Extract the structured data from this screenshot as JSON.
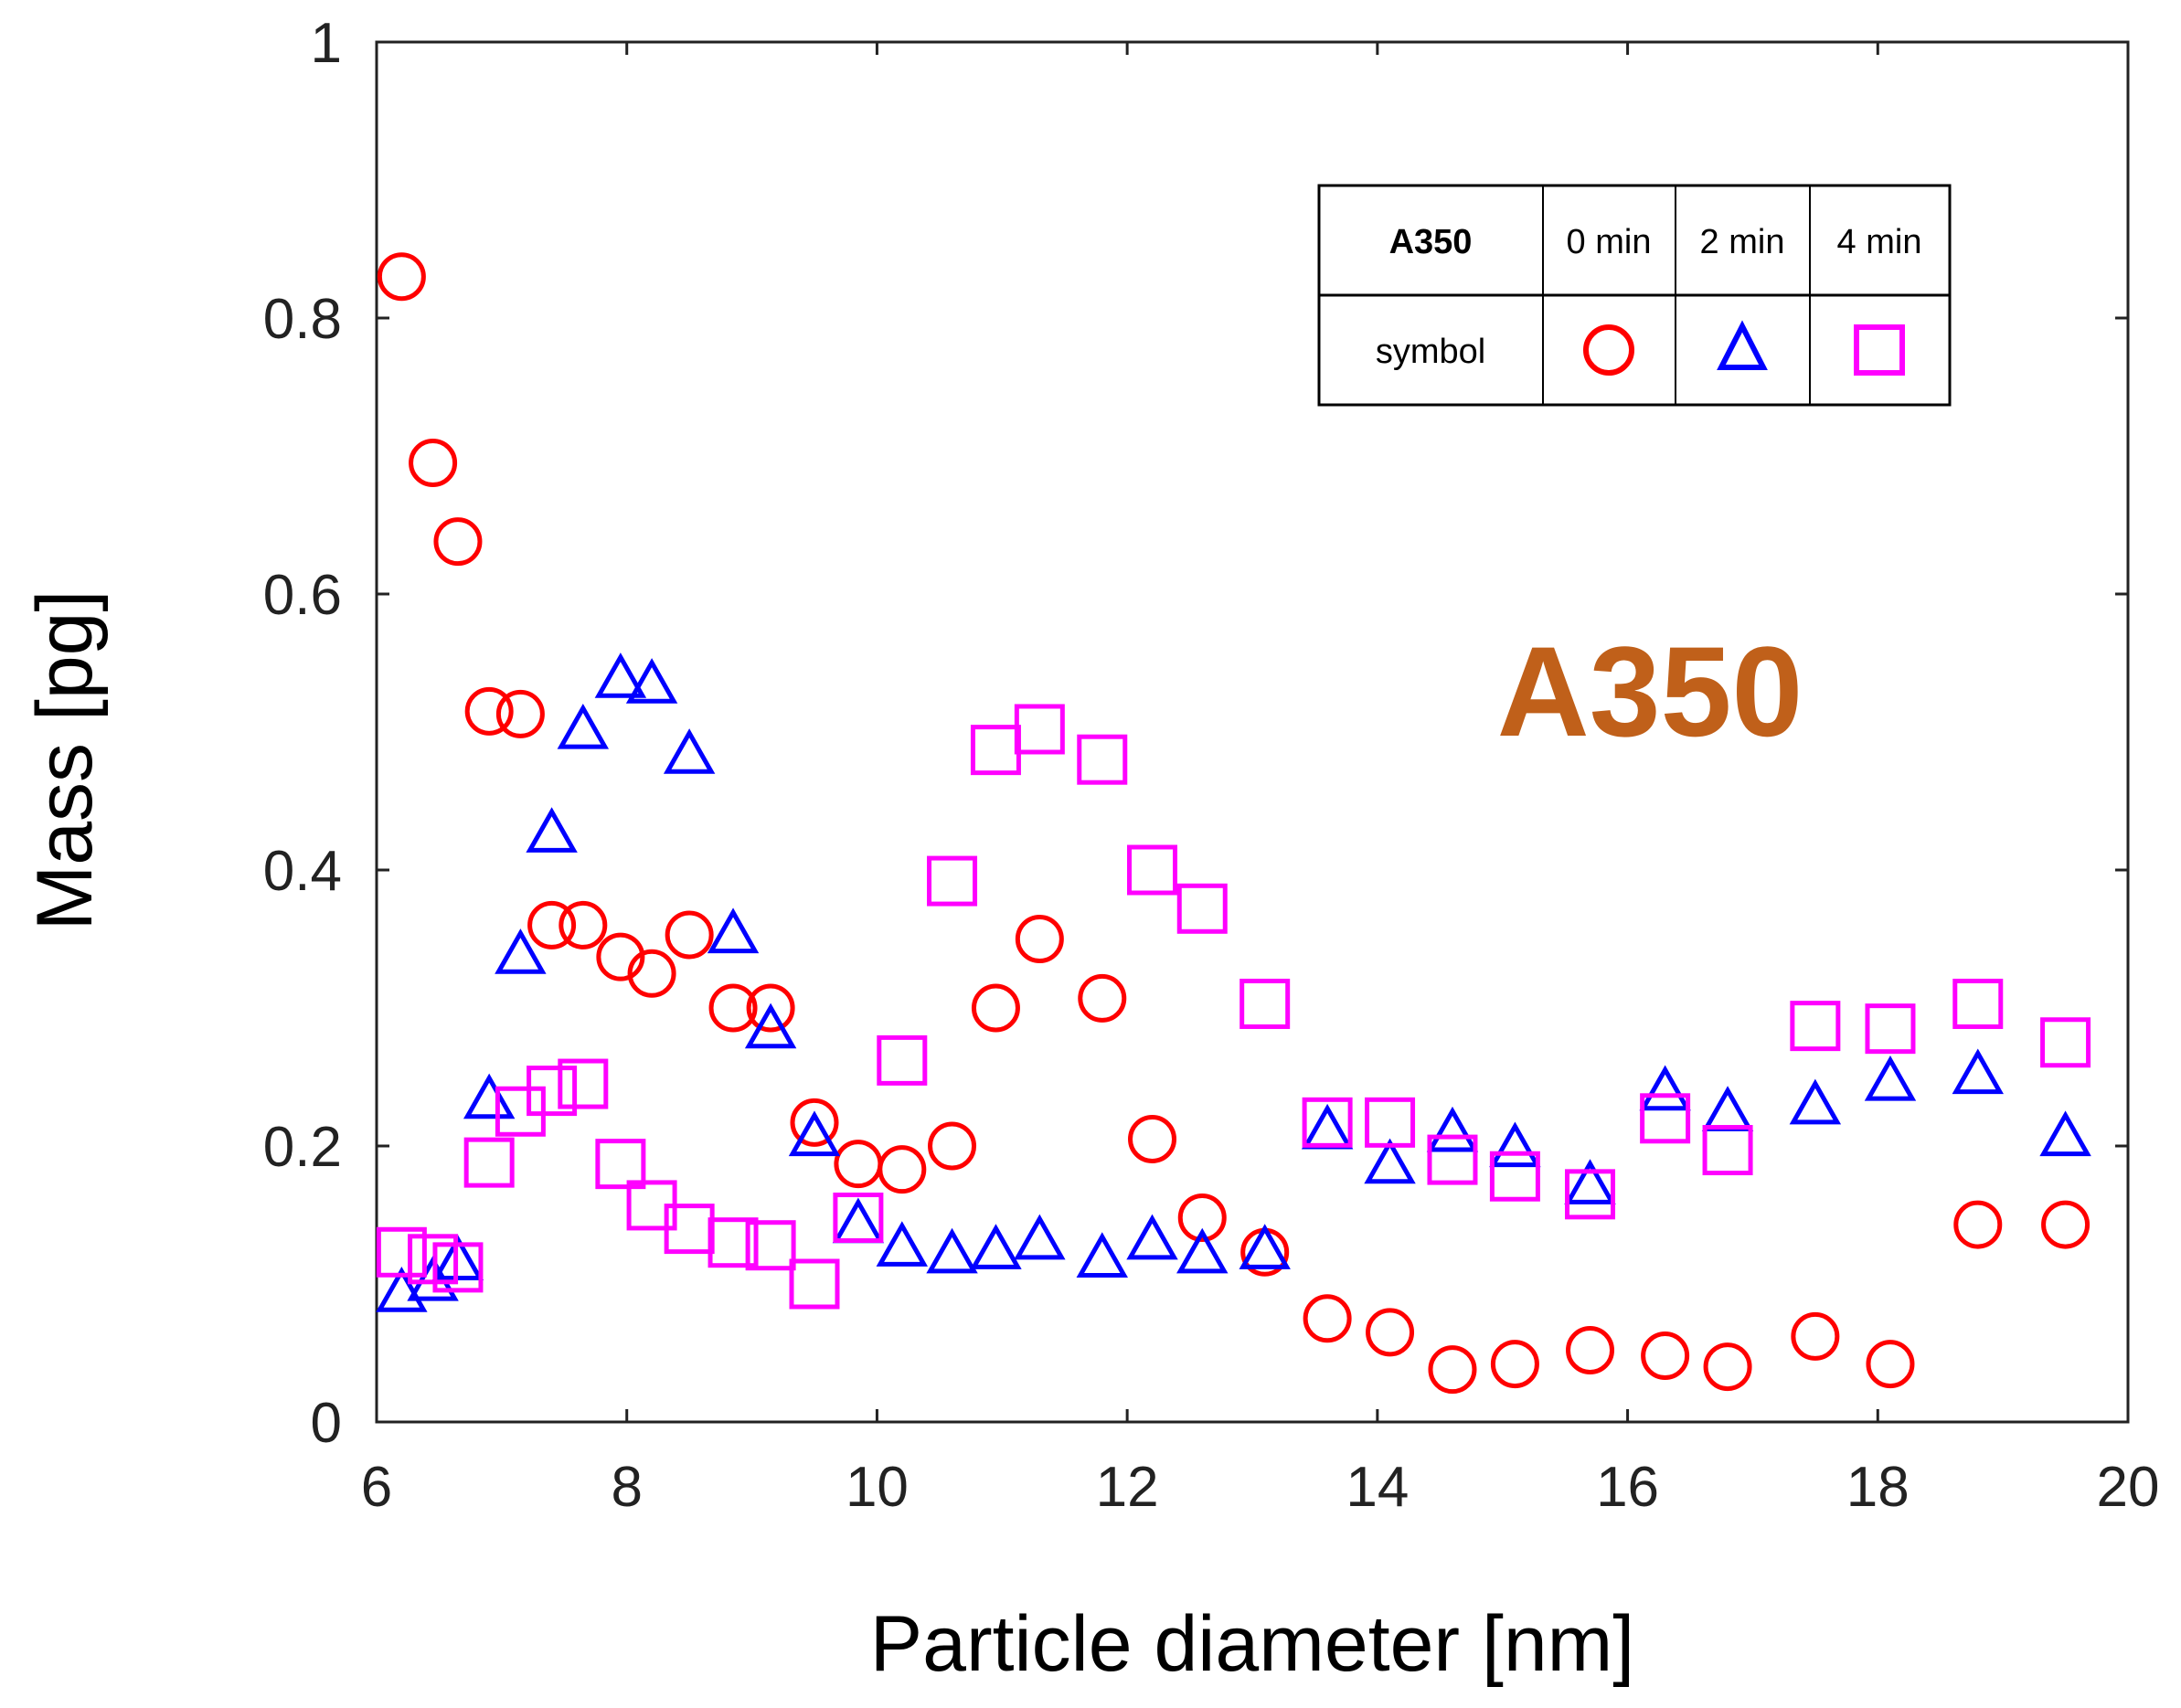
{
  "chart_data": {
    "type": "scatter",
    "title": "A350",
    "xlabel": "Particle diameter [nm]",
    "ylabel": "Mass [pg]",
    "xlim": [
      6,
      20
    ],
    "ylim": [
      0,
      1
    ],
    "x_ticks": [
      "6",
      "8",
      "10",
      "12",
      "14",
      "16",
      "18",
      "20"
    ],
    "y_ticks": [
      "0",
      "0.2",
      "0.4",
      "0.6",
      "0.8",
      "1"
    ],
    "grid": false,
    "legend": {
      "header": "A350",
      "row_label": "symbol",
      "position": "top-right",
      "entries": [
        "0 min",
        "2 min",
        "4 min"
      ]
    },
    "series": [
      {
        "name": "0 min",
        "marker": "circle",
        "color": "#ff0000",
        "points": [
          [
            6.2,
            0.83
          ],
          [
            6.45,
            0.695
          ],
          [
            6.65,
            0.638
          ],
          [
            6.9,
            0.515
          ],
          [
            7.15,
            0.513
          ],
          [
            7.4,
            0.36
          ],
          [
            7.65,
            0.36
          ],
          [
            7.95,
            0.337
          ],
          [
            8.2,
            0.325
          ],
          [
            8.5,
            0.353
          ],
          [
            8.85,
            0.3
          ],
          [
            9.15,
            0.3
          ],
          [
            9.5,
            0.217
          ],
          [
            9.85,
            0.187
          ],
          [
            10.2,
            0.183
          ],
          [
            10.6,
            0.2
          ],
          [
            10.95,
            0.3
          ],
          [
            11.3,
            0.35
          ],
          [
            11.8,
            0.307
          ],
          [
            12.2,
            0.205
          ],
          [
            12.6,
            0.148
          ],
          [
            13.1,
            0.123
          ],
          [
            13.6,
            0.075
          ],
          [
            14.1,
            0.065
          ],
          [
            14.6,
            0.038
          ],
          [
            15.1,
            0.042
          ],
          [
            15.7,
            0.052
          ],
          [
            16.3,
            0.048
          ],
          [
            16.8,
            0.04
          ],
          [
            17.5,
            0.062
          ],
          [
            18.1,
            0.042
          ],
          [
            18.8,
            0.143
          ],
          [
            19.5,
            0.143
          ]
        ]
      },
      {
        "name": "2 min",
        "marker": "triangle",
        "color": "#0000ff",
        "points": [
          [
            6.2,
            0.092
          ],
          [
            6.45,
            0.1
          ],
          [
            6.65,
            0.115
          ],
          [
            6.9,
            0.232
          ],
          [
            7.15,
            0.337
          ],
          [
            7.4,
            0.425
          ],
          [
            7.65,
            0.5
          ],
          [
            7.95,
            0.537
          ],
          [
            8.2,
            0.533
          ],
          [
            8.5,
            0.482
          ],
          [
            8.85,
            0.352
          ],
          [
            9.15,
            0.283
          ],
          [
            9.5,
            0.205
          ],
          [
            9.85,
            0.142
          ],
          [
            10.2,
            0.125
          ],
          [
            10.6,
            0.12
          ],
          [
            10.95,
            0.123
          ],
          [
            11.3,
            0.13
          ],
          [
            11.8,
            0.117
          ],
          [
            12.2,
            0.13
          ],
          [
            12.6,
            0.12
          ],
          [
            13.1,
            0.123
          ],
          [
            13.6,
            0.21
          ],
          [
            14.1,
            0.185
          ],
          [
            14.6,
            0.208
          ],
          [
            15.1,
            0.197
          ],
          [
            15.7,
            0.17
          ],
          [
            16.3,
            0.238
          ],
          [
            16.8,
            0.223
          ],
          [
            17.5,
            0.228
          ],
          [
            18.1,
            0.245
          ],
          [
            18.8,
            0.25
          ],
          [
            19.5,
            0.205
          ]
        ]
      },
      {
        "name": "4 min",
        "marker": "square",
        "color": "#ff00ff",
        "points": [
          [
            6.2,
            0.123
          ],
          [
            6.45,
            0.118
          ],
          [
            6.65,
            0.112
          ],
          [
            6.9,
            0.188
          ],
          [
            7.15,
            0.225
          ],
          [
            7.4,
            0.24
          ],
          [
            7.65,
            0.245
          ],
          [
            7.95,
            0.187
          ],
          [
            8.2,
            0.157
          ],
          [
            8.5,
            0.14
          ],
          [
            8.85,
            0.13
          ],
          [
            9.15,
            0.128
          ],
          [
            9.5,
            0.1
          ],
          [
            9.85,
            0.148
          ],
          [
            10.2,
            0.262
          ],
          [
            10.6,
            0.392
          ],
          [
            10.95,
            0.487
          ],
          [
            11.3,
            0.502
          ],
          [
            11.8,
            0.48
          ],
          [
            12.2,
            0.4
          ],
          [
            12.6,
            0.372
          ],
          [
            13.1,
            0.303
          ],
          [
            13.6,
            0.217
          ],
          [
            14.1,
            0.217
          ],
          [
            14.6,
            0.19
          ],
          [
            15.1,
            0.178
          ],
          [
            15.7,
            0.165
          ],
          [
            16.3,
            0.22
          ],
          [
            16.8,
            0.197
          ],
          [
            17.5,
            0.287
          ],
          [
            18.1,
            0.285
          ],
          [
            18.8,
            0.303
          ],
          [
            19.5,
            0.275
          ]
        ]
      }
    ]
  }
}
